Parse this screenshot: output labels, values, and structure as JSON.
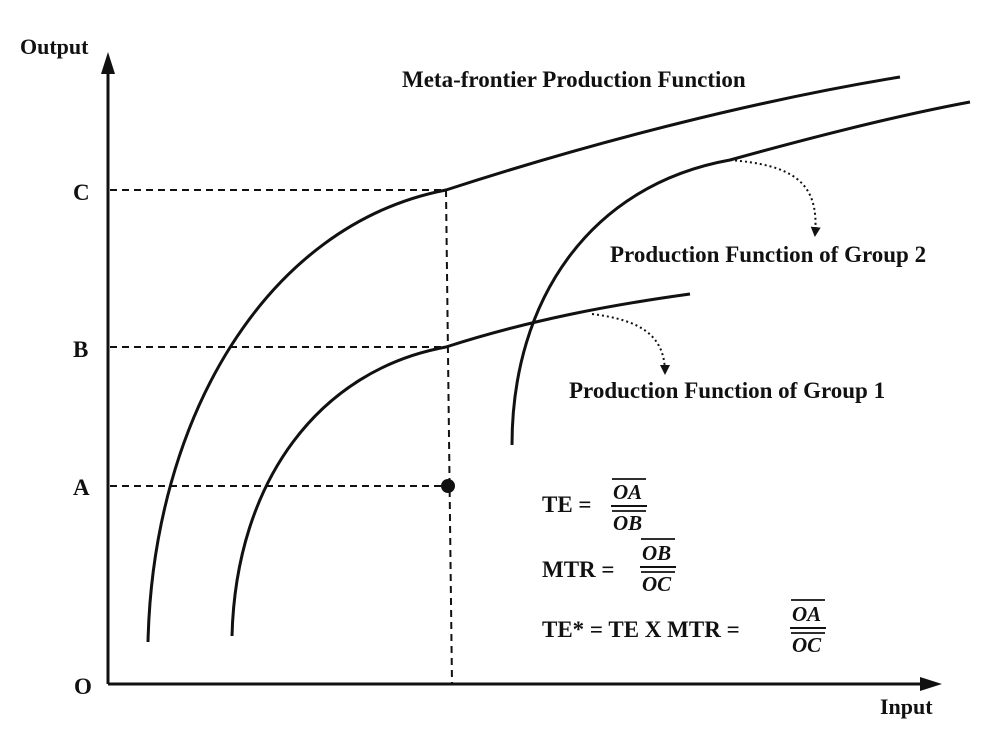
{
  "axes": {
    "x_label": "Input",
    "y_label": "Output",
    "origin": "O",
    "levels": [
      {
        "id": "A",
        "label": "A"
      },
      {
        "id": "B",
        "label": "B"
      },
      {
        "id": "C",
        "label": "C"
      }
    ]
  },
  "curves": {
    "meta": "Meta-frontier Production Function",
    "group2": "Production Function of Group 2",
    "group1": "Production Function of Group 1"
  },
  "equations": {
    "te": {
      "lhs": "TE =",
      "num": "OA",
      "den": "OB"
    },
    "mtr": {
      "lhs": "MTR =",
      "num": "OB",
      "den": "OC"
    },
    "te_star": {
      "lhs": "TE* = TE X MTR =",
      "num": "OA",
      "den": "OC"
    }
  },
  "colors": {
    "ink": "#111111",
    "background": "#ffffff"
  }
}
